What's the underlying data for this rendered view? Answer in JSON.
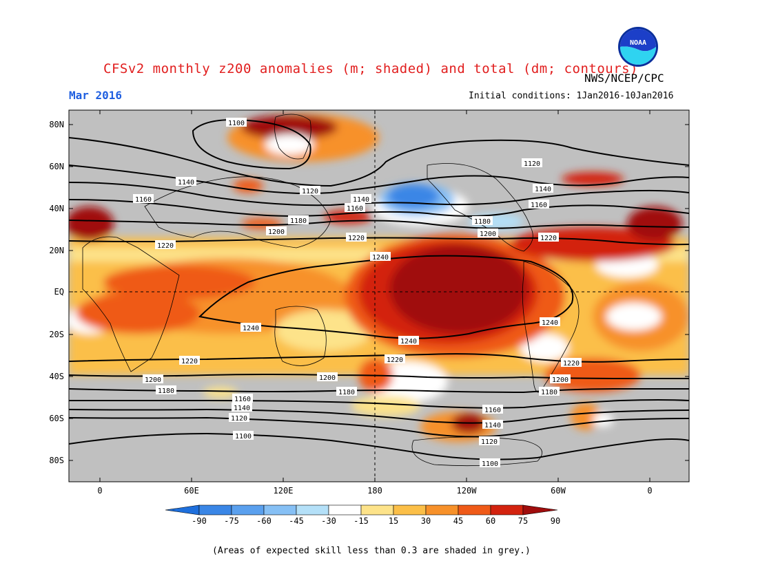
{
  "title": "CFSv2 monthly z200 anomalies (m; shaded) and total (dm; contours)",
  "organization": "NWS/NCEP/CPC",
  "logo_text": "NOAA",
  "period": "Mar 2016",
  "initial_conditions": "Initial conditions: 1Jan2016-10Jan2016",
  "footnote": "(Areas of expected skill less than 0.3 are shaded in grey.)",
  "colors": {
    "no_skill": "#c0c0c0",
    "title": "#e11d1d",
    "period": "#1f5fe0"
  },
  "map": {
    "lat_ticks": [
      "80N",
      "60N",
      "40N",
      "20N",
      "EQ",
      "20S",
      "40S",
      "60S",
      "80S"
    ],
    "lon_ticks": [
      "0",
      "60E",
      "120E",
      "180",
      "120W",
      "60W",
      "0"
    ],
    "contour_labels": [
      {
        "text": "1100"
      },
      {
        "text": "1120"
      },
      {
        "text": "1140"
      },
      {
        "text": "1160"
      },
      {
        "text": "1180"
      },
      {
        "text": "1200"
      },
      {
        "text": "1220"
      },
      {
        "text": "1240"
      },
      {
        "text": "1240"
      },
      {
        "text": "1240"
      },
      {
        "text": "1140"
      },
      {
        "text": "1160"
      },
      {
        "text": "1180"
      },
      {
        "text": "1200"
      },
      {
        "text": "1220"
      },
      {
        "text": "1120"
      },
      {
        "text": "1140"
      },
      {
        "text": "1160"
      },
      {
        "text": "1180"
      },
      {
        "text": "1200"
      },
      {
        "text": "1220"
      },
      {
        "text": "1240"
      },
      {
        "text": "1220"
      },
      {
        "text": "1200"
      },
      {
        "text": "1180"
      },
      {
        "text": "1160"
      },
      {
        "text": "1140"
      },
      {
        "text": "1120"
      },
      {
        "text": "1100"
      },
      {
        "text": "1160"
      },
      {
        "text": "1140"
      },
      {
        "text": "1120"
      },
      {
        "text": "1100"
      },
      {
        "text": "1220"
      },
      {
        "text": "1200"
      },
      {
        "text": "1180"
      },
      {
        "text": "1220"
      }
    ]
  },
  "legend": {
    "bins": [
      {
        "color": "#1e6fdc"
      },
      {
        "color": "#3a86e6"
      },
      {
        "color": "#5aa0ee"
      },
      {
        "color": "#86c0f5"
      },
      {
        "color": "#b4e0f8"
      },
      {
        "color": "#ffffff"
      },
      {
        "color": "#fde38a"
      },
      {
        "color": "#fbbf48"
      },
      {
        "color": "#f7912a"
      },
      {
        "color": "#ef5a18"
      },
      {
        "color": "#d3230f"
      },
      {
        "color": "#a00d0d"
      }
    ],
    "labels": [
      "-90",
      "-75",
      "-60",
      "-45",
      "-30",
      "-15",
      "15",
      "30",
      "45",
      "60",
      "75",
      "90"
    ]
  }
}
